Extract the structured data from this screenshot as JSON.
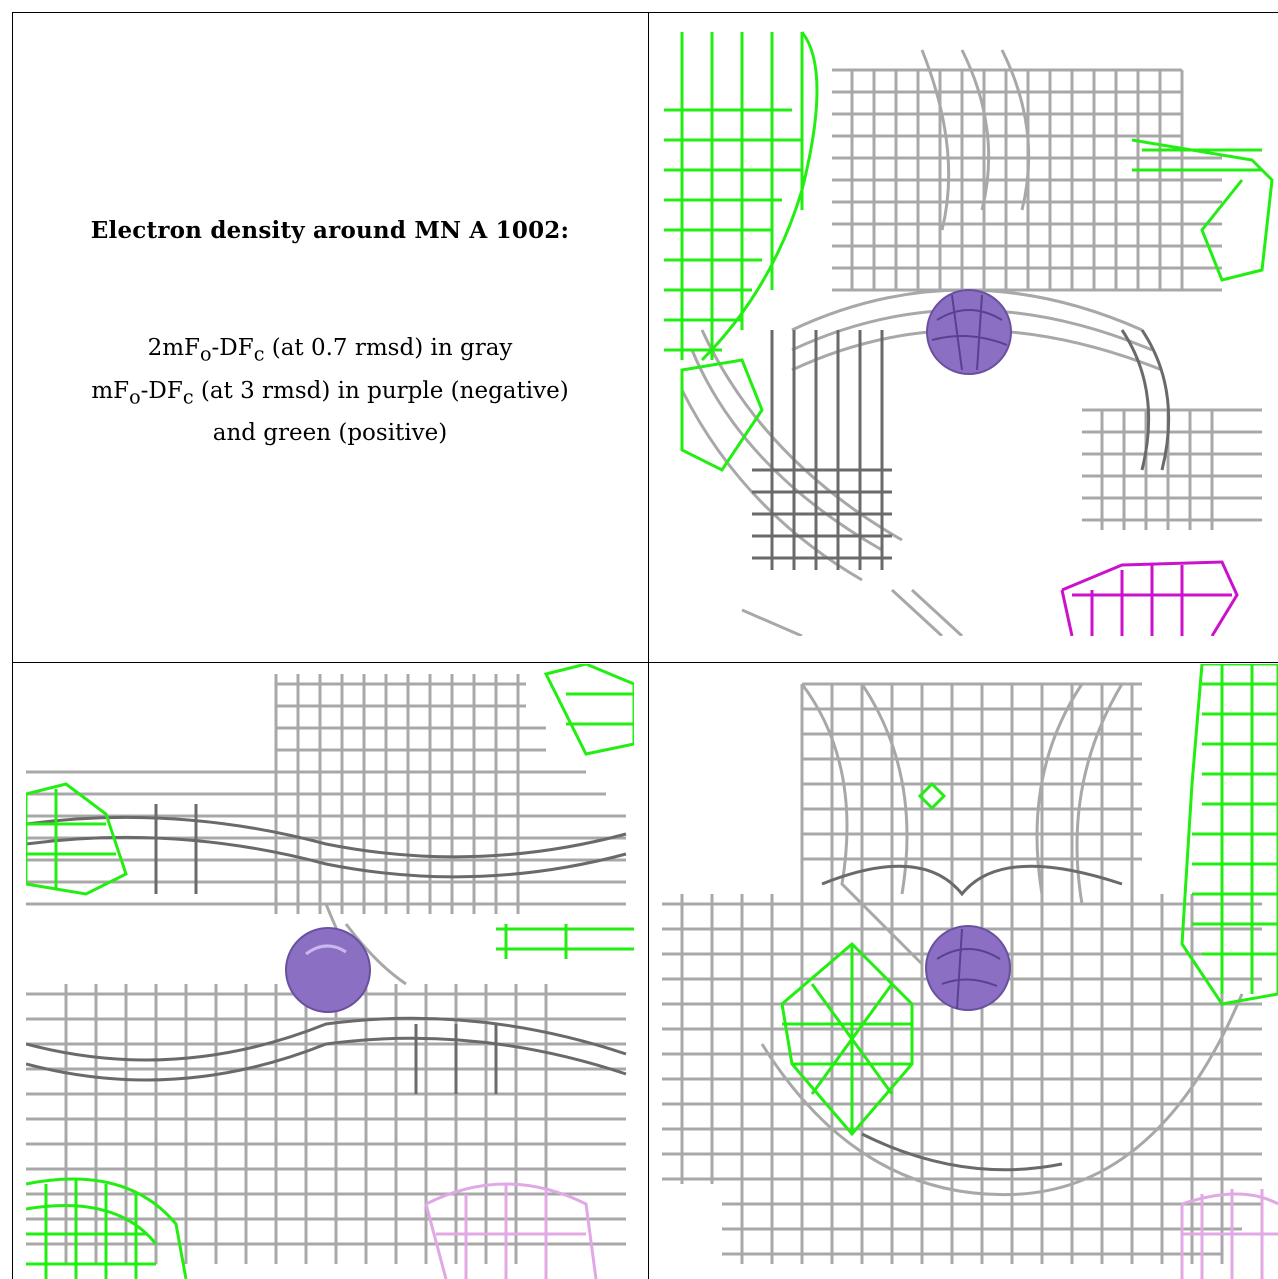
{
  "caption": {
    "title": "Electron density around MN A 1002:",
    "line1": "2mFo-DFc (at 0.7 rmsd) in gray",
    "line2": "mFo-DFc (at 3 rmsd) in purple (negative)",
    "line3": "and green (positive)"
  },
  "legend_colors": {
    "map_2fofc": "#9a9a9a",
    "map_fofc_positive": "#22ee11",
    "map_fofc_negative": "#cc11cc",
    "atom": "#8a6fc2"
  },
  "panels": [
    {
      "name": "view-1",
      "has_negative_density": true
    },
    {
      "name": "view-2",
      "has_negative_density": true
    },
    {
      "name": "view-3",
      "has_negative_density": true
    }
  ]
}
